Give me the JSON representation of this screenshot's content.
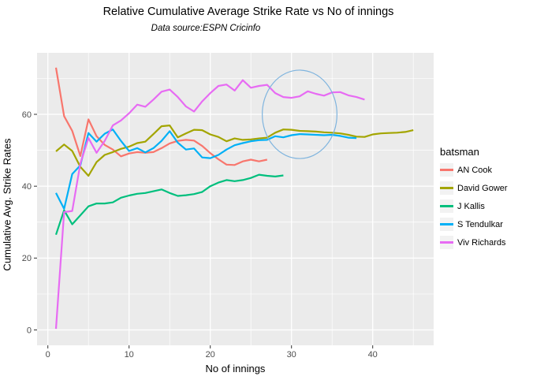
{
  "title": "Relative Cumulative Average Strike Rate vs No of innings",
  "subtitle": "Data source:ESPN Cricinfo",
  "axes": {
    "x_label": "No of innings",
    "y_label": "Cumulative Avg. Strike Rates",
    "x_tick_labels": [
      "0",
      "10",
      "20",
      "30",
      "40"
    ],
    "y_tick_labels": [
      "0",
      "20",
      "40",
      "60"
    ]
  },
  "legend": {
    "title": "batsman",
    "items": [
      {
        "label": "AN Cook",
        "color": "#F8766D"
      },
      {
        "label": "David Gower",
        "color": "#A3A500"
      },
      {
        "label": "J Kallis",
        "color": "#00BF7D"
      },
      {
        "label": "S Tendulkar",
        "color": "#00B0F6"
      },
      {
        "label": "Viv Richards",
        "color": "#E76BF3"
      }
    ]
  },
  "colors": {
    "panel_bg": "#EBEBEB",
    "grid_major": "#FFFFFF",
    "grid_minor": "#F7F7F7",
    "tick_mark": "#333333",
    "tick_text": "#4D4D4D",
    "legend_key_bg": "#F2F2F2",
    "annotation": "#7FB4DE"
  },
  "chart_data": {
    "type": "line",
    "title": "Relative Cumulative Average Strike Rate vs No of innings",
    "subtitle": "Data source:ESPN Cricinfo",
    "xlabel": "No of innings",
    "ylabel": "Cumulative Avg. Strike Rates",
    "x_start": 1,
    "x_step": 1,
    "xlim": [
      -1.3,
      47.5
    ],
    "ylim": [
      -4.3,
      77.1
    ],
    "x_major_ticks": [
      0,
      10,
      20,
      30,
      40
    ],
    "y_major_ticks": [
      0,
      20,
      40,
      60
    ],
    "x_minor_ticks": [
      5,
      15,
      25,
      35,
      45
    ],
    "y_minor_ticks": [
      10,
      30,
      50,
      70
    ],
    "grid": true,
    "legend_position": "right",
    "series": [
      {
        "name": "AN Cook",
        "color": "#F8766D",
        "values": [
          73.0,
          59.5,
          55.4,
          48.4,
          58.6,
          53.9,
          51.5,
          50.2,
          48.3,
          49.1,
          49.5,
          49.3,
          49.5,
          50.6,
          51.9,
          52.6,
          52.9,
          52.7,
          51.2,
          49.2,
          47.5,
          46.0,
          45.9,
          46.9,
          47.4,
          46.9,
          47.4
        ]
      },
      {
        "name": "David Gower",
        "color": "#A3A500",
        "values": [
          49.7,
          51.6,
          49.8,
          45.4,
          42.9,
          46.7,
          48.7,
          49.5,
          50.4,
          51.0,
          52.0,
          52.4,
          54.5,
          56.7,
          56.9,
          53.6,
          54.7,
          55.7,
          55.6,
          54.4,
          53.7,
          52.5,
          53.3,
          52.9,
          53.0,
          53.3,
          53.5,
          54.9,
          55.8,
          55.7,
          55.4,
          55.3,
          55.2,
          55.0,
          54.9,
          54.7,
          54.3,
          53.8,
          53.7,
          54.4,
          54.7,
          54.8,
          54.9,
          55.1,
          55.6
        ]
      },
      {
        "name": "J Kallis",
        "color": "#00BF7D",
        "values": [
          26.5,
          33.3,
          29.4,
          31.9,
          34.4,
          35.2,
          35.2,
          35.5,
          36.8,
          37.4,
          37.9,
          38.1,
          38.6,
          39.1,
          38.1,
          37.3,
          37.5,
          37.8,
          38.4,
          40.0,
          41.0,
          41.7,
          41.4,
          41.7,
          42.3,
          43.2,
          42.9,
          42.7,
          43.0
        ]
      },
      {
        "name": "S Tendulkar",
        "color": "#00B0F6",
        "values": [
          38.1,
          33.7,
          43.4,
          45.8,
          54.8,
          52.4,
          54.6,
          55.8,
          52.6,
          49.8,
          50.6,
          49.4,
          50.6,
          52.6,
          55.3,
          52.1,
          50.2,
          50.5,
          48.0,
          47.8,
          48.7,
          50.2,
          51.4,
          52.0,
          52.5,
          52.8,
          52.9,
          53.9,
          53.6,
          54.2,
          54.5,
          54.4,
          54.3,
          54.2,
          54.3,
          54.0,
          53.5,
          53.4
        ]
      },
      {
        "name": "Viv Richards",
        "color": "#E76BF3",
        "values": [
          0.3,
          32.8,
          33.1,
          46.3,
          53.4,
          49.3,
          52.6,
          56.9,
          58.3,
          60.3,
          62.7,
          62.1,
          64.1,
          66.3,
          66.9,
          64.8,
          62.2,
          60.8,
          63.6,
          65.9,
          67.9,
          68.3,
          66.6,
          69.5,
          67.4,
          67.9,
          68.2,
          65.9,
          64.8,
          64.6,
          65.0,
          66.4,
          65.7,
          65.2,
          66.1,
          66.2,
          65.3,
          64.8,
          64.1
        ]
      }
    ],
    "annotations": [
      {
        "type": "ellipse",
        "center_x": 31,
        "center_y": 60,
        "radius_x": 4.6,
        "radius_y": 12.3,
        "color": "#7FB4DE"
      }
    ]
  }
}
